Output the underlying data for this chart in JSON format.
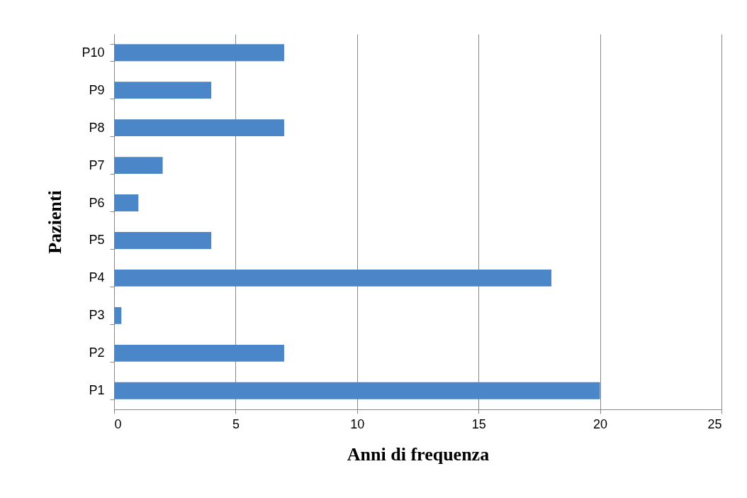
{
  "chart_data": {
    "type": "bar",
    "orientation": "horizontal",
    "xlabel": "Anni di frequenza",
    "ylabel": "Pazienti",
    "categories": [
      "P10",
      "P9",
      "P8",
      "P7",
      "P6",
      "P5",
      "P4",
      "P3",
      "P2",
      "P1"
    ],
    "values": [
      7,
      4,
      7,
      2,
      1,
      4,
      18,
      0.3,
      7,
      20
    ],
    "color": "#4a86c8",
    "xlim": [
      0,
      25
    ],
    "xticks": [
      0,
      5,
      10,
      15,
      20,
      25
    ],
    "grid": "x"
  }
}
